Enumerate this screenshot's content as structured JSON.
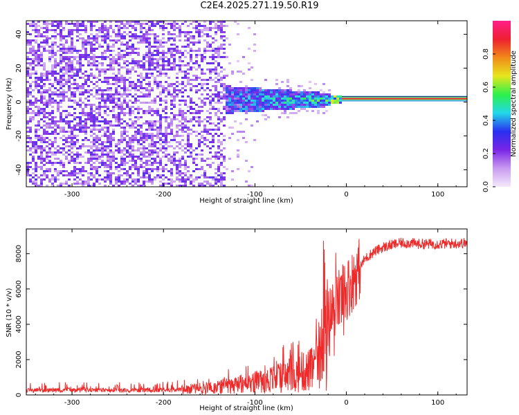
{
  "title": "C2E4.2025.271.19.50.R19",
  "colors": {
    "snr_line": "#ee2a2a",
    "carrier": "#e8293f",
    "colorbar": [
      "#f3e9fa",
      "#c99cf0",
      "#7a25e6",
      "#2a2ff0",
      "#22d8e8",
      "#2cf04a",
      "#e6e61e",
      "#f08a18",
      "#ee2030",
      "#ff1f8a"
    ]
  },
  "chart_data": [
    {
      "type": "heatmap",
      "title": "C2E4.2025.271.19.50.R19",
      "xlabel": "Height of straight line (km)",
      "ylabel": "Frequency (Hz)",
      "xlim": [
        -350,
        132
      ],
      "ylim": [
        -50,
        48
      ],
      "xticks": [
        -300,
        -200,
        -100,
        0,
        100
      ],
      "xtick_labels": [
        "-300",
        "-200",
        "-100",
        "0",
        "100"
      ],
      "yticks": [
        -40,
        -20,
        0,
        20,
        40
      ],
      "ytick_labels": [
        "-40",
        "-20",
        "0",
        "20",
        "40"
      ],
      "colorbar": {
        "label": "Normalized spectral amplitude",
        "range": [
          0,
          1
        ],
        "ticks": [
          0.0,
          0.2,
          0.4,
          0.6,
          0.8
        ],
        "tick_labels": [
          "0.0",
          "0.2",
          "0.4",
          "0.6",
          "0.8"
        ]
      },
      "features": {
        "noise_region_x": [
          -350,
          -135
        ],
        "transition_region_x": [
          -180,
          -20
        ],
        "carrier_line_x": [
          -5,
          132
        ],
        "carrier_frequency_hz": 2
      }
    },
    {
      "type": "line",
      "xlabel": "Height of straight line (km)",
      "ylabel": "SNR (10 * v/v)",
      "xlim": [
        -350,
        132
      ],
      "ylim": [
        0,
        9400
      ],
      "xticks": [
        -300,
        -200,
        -100,
        0,
        100
      ],
      "xtick_labels": [
        "-300",
        "-200",
        "-100",
        "0",
        "100"
      ],
      "yticks": [
        0,
        2000,
        4000,
        6000,
        8000
      ],
      "ytick_labels": [
        "0",
        "2000",
        "4000",
        "6000",
        "8000"
      ],
      "series": [
        {
          "name": "SNR",
          "x": [
            -350,
            -300,
            -250,
            -200,
            -175,
            -150,
            -130,
            -110,
            -100,
            -80,
            -60,
            -45,
            -35,
            -30,
            -25,
            -20,
            -15,
            -10,
            -5,
            0,
            5,
            10,
            15,
            20,
            30,
            40,
            50,
            60,
            70,
            80,
            100,
            120,
            132
          ],
          "y": [
            250,
            270,
            260,
            270,
            330,
            400,
            520,
            650,
            750,
            900,
            1100,
            1300,
            1500,
            2000,
            3000,
            4200,
            4800,
            5200,
            5600,
            6000,
            6300,
            6800,
            7200,
            7700,
            8100,
            8350,
            8500,
            8600,
            8600,
            8550,
            8550,
            8580,
            8600
          ]
        }
      ]
    }
  ]
}
